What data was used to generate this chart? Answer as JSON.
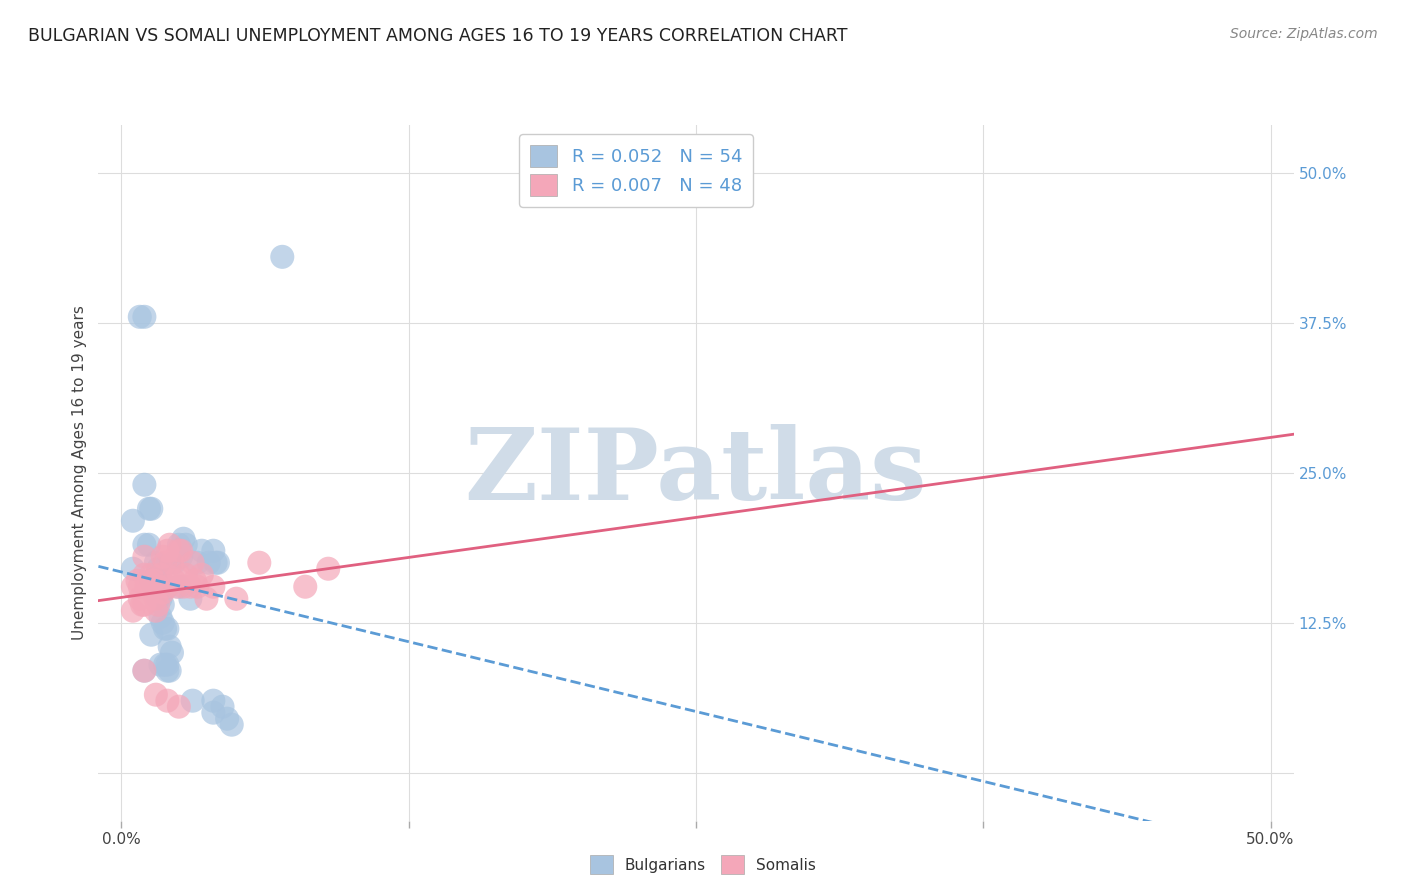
{
  "title": "BULGARIAN VS SOMALI UNEMPLOYMENT AMONG AGES 16 TO 19 YEARS CORRELATION CHART",
  "source": "Source: ZipAtlas.com",
  "ylabel": "Unemployment Among Ages 16 to 19 years",
  "xlim": [
    -1.0,
    51.0
  ],
  "ylim": [
    -4.0,
    54.0
  ],
  "xtick_vals": [
    0.0,
    12.5,
    25.0,
    37.5,
    50.0
  ],
  "xtick_labels": [
    "0.0%",
    "",
    "",
    "",
    "50.0%"
  ],
  "ytick_right_vals": [
    50.0,
    37.5,
    25.0,
    12.5
  ],
  "ytick_right_labels": [
    "50.0%",
    "37.5%",
    "25.0%",
    "12.5%"
  ],
  "bulgarian_color": "#a8c4e0",
  "somali_color": "#f4a7b9",
  "bulgarian_line_color": "#5b9bd5",
  "somali_line_color": "#e06080",
  "watermark": "ZIPatlas",
  "watermark_color": "#d0dce8",
  "legend_R_bulgarian": "0.052",
  "legend_N_bulgarian": "54",
  "legend_R_somali": "0.007",
  "legend_N_somali": "48",
  "bg_color": "#ffffff",
  "grid_color": "#dddddd",
  "bulgarian_x": [
    0.5,
    0.5,
    0.8,
    1.0,
    1.0,
    1.0,
    1.2,
    1.2,
    1.3,
    1.3,
    1.4,
    1.5,
    1.5,
    1.5,
    1.6,
    1.6,
    1.7,
    1.7,
    1.7,
    1.8,
    1.8,
    1.8,
    1.9,
    1.9,
    2.0,
    2.0,
    2.0,
    2.1,
    2.1,
    2.2,
    2.3,
    2.5,
    2.5,
    2.6,
    2.7,
    2.8,
    3.0,
    3.1,
    3.3,
    3.5,
    3.8,
    4.0,
    4.0,
    4.0,
    4.1,
    4.2,
    4.4,
    4.6,
    4.8,
    7.0,
    1.0,
    1.3,
    1.7,
    2.0
  ],
  "bulgarian_y": [
    17.0,
    21.0,
    38.0,
    38.0,
    24.0,
    19.0,
    19.0,
    22.0,
    16.0,
    22.0,
    15.5,
    17.5,
    15.5,
    16.0,
    14.5,
    17.0,
    14.5,
    13.0,
    16.0,
    14.0,
    15.5,
    12.5,
    9.0,
    12.0,
    15.5,
    8.5,
    9.0,
    10.5,
    8.5,
    10.0,
    17.5,
    15.5,
    19.0,
    18.0,
    19.5,
    19.0,
    14.5,
    6.0,
    17.5,
    18.5,
    17.5,
    18.5,
    6.0,
    5.0,
    17.5,
    17.5,
    5.5,
    4.5,
    4.0,
    43.0,
    8.5,
    11.5,
    9.0,
    12.0
  ],
  "somali_x": [
    0.5,
    0.5,
    0.7,
    0.8,
    0.8,
    0.9,
    1.0,
    1.0,
    1.0,
    1.1,
    1.2,
    1.3,
    1.3,
    1.4,
    1.5,
    1.5,
    1.6,
    1.6,
    1.7,
    1.8,
    1.8,
    1.9,
    2.0,
    2.0,
    2.1,
    2.2,
    2.3,
    2.4,
    2.5,
    2.5,
    2.6,
    2.7,
    2.8,
    3.0,
    3.1,
    3.2,
    3.3,
    3.5,
    3.7,
    4.0,
    5.0,
    6.0,
    8.0,
    9.0,
    1.0,
    1.5,
    2.0,
    2.5
  ],
  "somali_y": [
    15.5,
    13.5,
    16.0,
    15.5,
    14.5,
    14.0,
    16.5,
    14.0,
    18.0,
    15.5,
    16.0,
    16.5,
    15.5,
    16.0,
    14.5,
    13.5,
    15.5,
    14.0,
    16.5,
    15.0,
    18.0,
    17.5,
    15.5,
    18.5,
    19.0,
    17.5,
    16.0,
    15.5,
    18.5,
    16.5,
    18.5,
    15.5,
    16.5,
    15.5,
    17.5,
    16.0,
    15.5,
    16.5,
    14.5,
    15.5,
    14.5,
    17.5,
    15.5,
    17.0,
    8.5,
    6.5,
    6.0,
    5.5
  ]
}
